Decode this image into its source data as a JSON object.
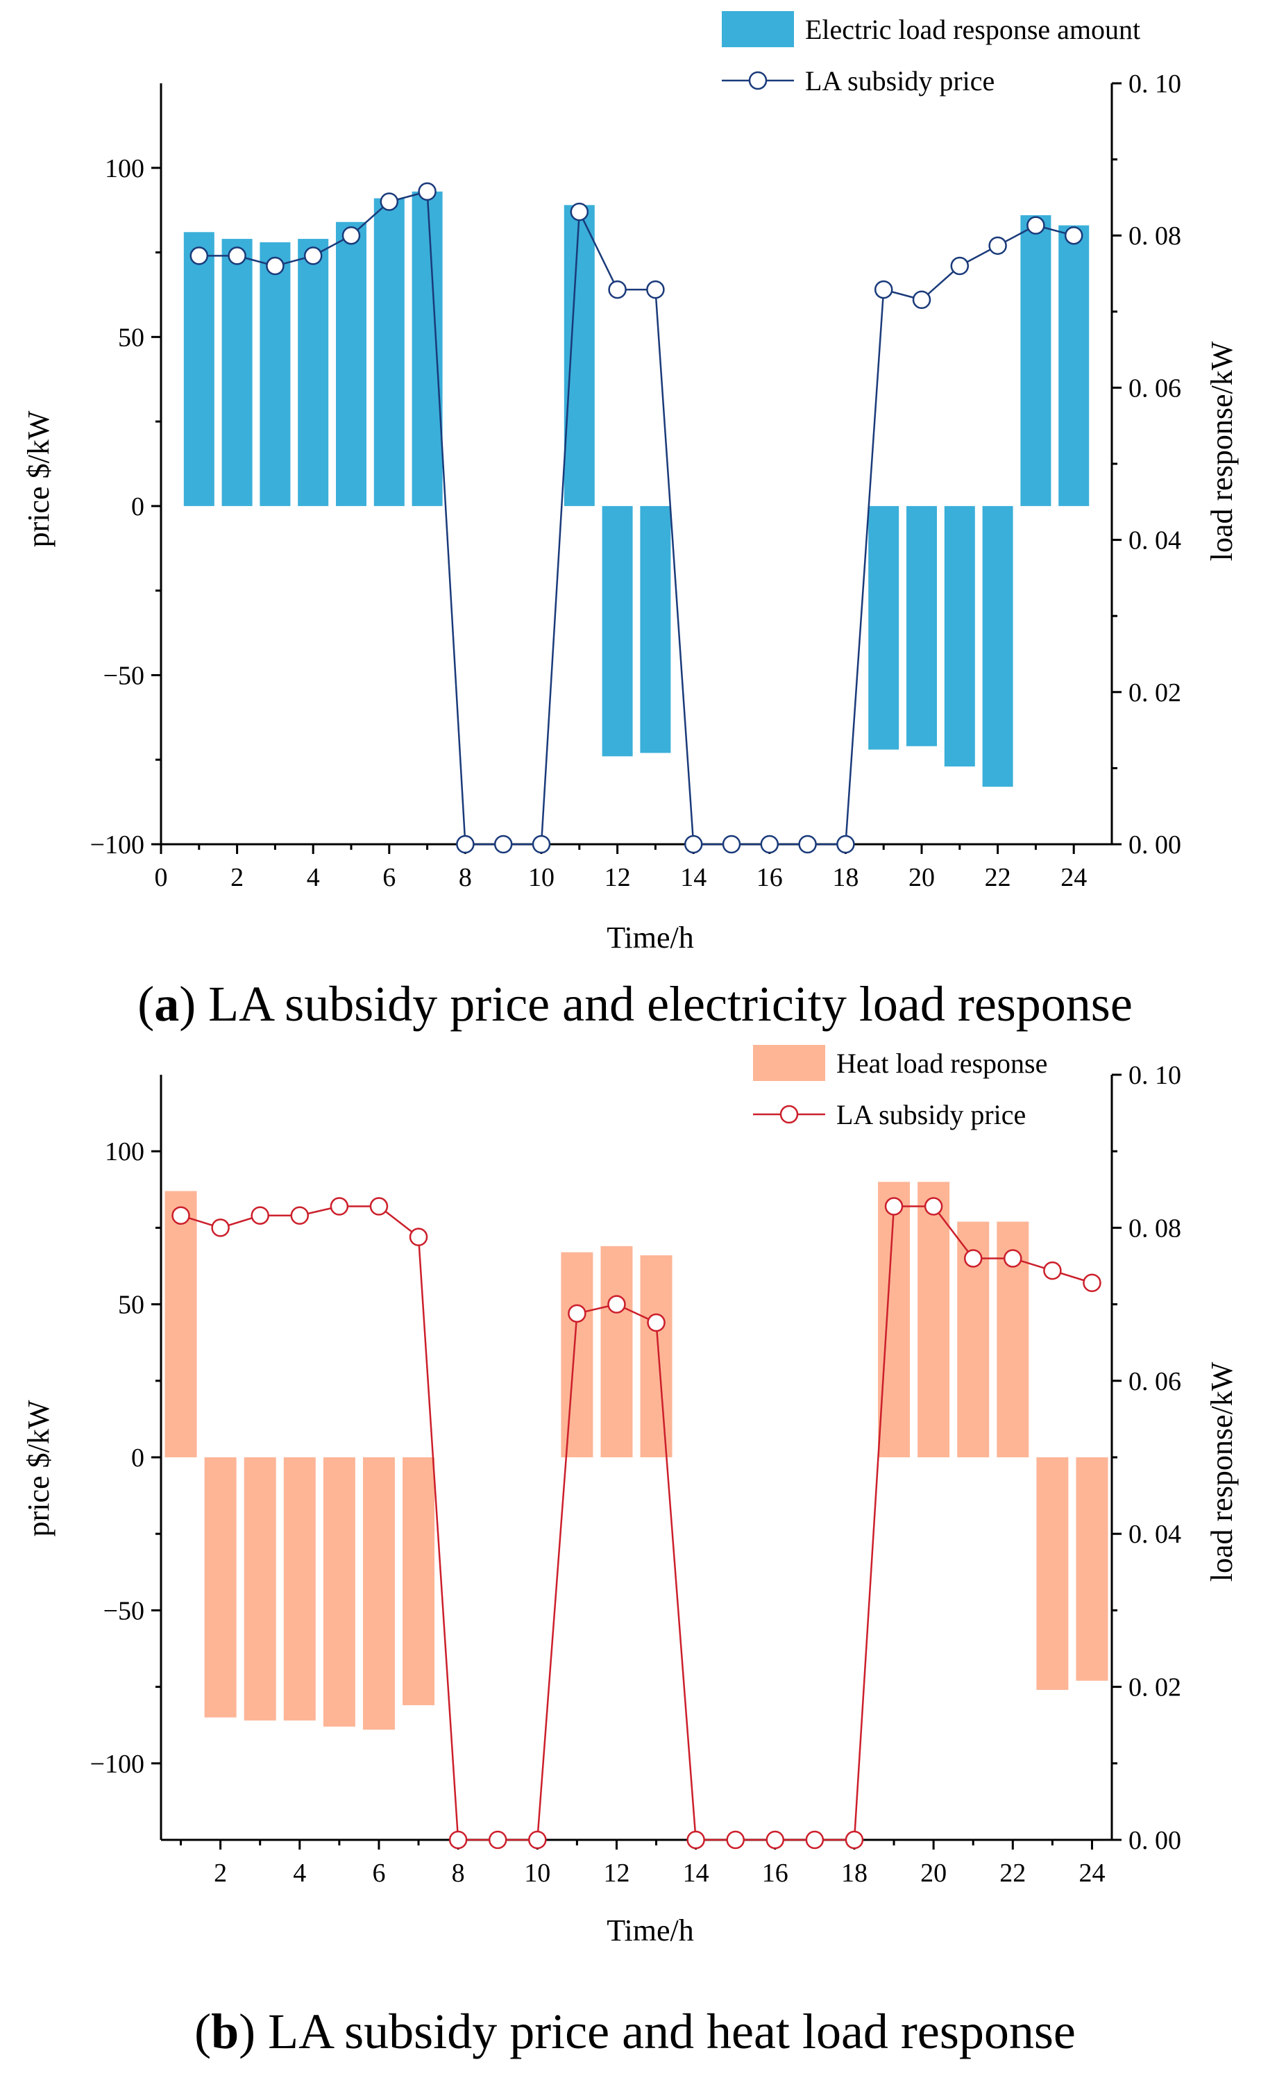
{
  "chart_data": [
    {
      "type": "bar",
      "caption_letter": "a",
      "caption_text": "LA subsidy price and electricity load response",
      "caption_open": "(",
      "caption_close": ")",
      "xlabel": "Time/h",
      "ylabel": "price $/kW",
      "y2label": "load response/kW",
      "xlim": [
        0,
        25
      ],
      "ylim": [
        -100,
        125
      ],
      "y2lim": [
        0,
        0.1
      ],
      "x_ticks": [
        "0",
        "2",
        "4",
        "6",
        "8",
        "10",
        "12",
        "14",
        "16",
        "18",
        "20",
        "22",
        "24"
      ],
      "y_ticks": [
        "100",
        "50",
        "0",
        "−50",
        "−100"
      ],
      "y2_ticks": [
        "0. 10",
        "0. 08",
        "0. 06",
        "0. 04",
        "0. 02",
        "0. 00"
      ],
      "colors": {
        "bar": "#3aafd9",
        "line": "#1a3a7a",
        "marker_face": "#ffffff"
      },
      "series": [
        {
          "name": "Electric load response amount",
          "kind": "bar",
          "x": [
            1,
            2,
            3,
            4,
            5,
            6,
            7,
            8,
            9,
            10,
            11,
            12,
            13,
            14,
            15,
            16,
            17,
            18,
            19,
            20,
            21,
            22,
            23,
            24
          ],
          "values": [
            81,
            79,
            78,
            79,
            84,
            91,
            93,
            0,
            0,
            0,
            89,
            -74,
            -73,
            0,
            0,
            0,
            0,
            0,
            -72,
            -71,
            -77,
            -83,
            86,
            83
          ]
        },
        {
          "name": "LA subsidy price",
          "kind": "line",
          "x": [
            1,
            2,
            3,
            4,
            5,
            6,
            7,
            8,
            9,
            10,
            11,
            12,
            13,
            14,
            15,
            16,
            17,
            18,
            19,
            20,
            21,
            22,
            23,
            24
          ],
          "values": [
            74,
            74,
            71,
            74,
            80,
            90,
            93,
            -100,
            -100,
            -100,
            87,
            64,
            64,
            -100,
            -100,
            -100,
            -100,
            -100,
            64,
            61,
            71,
            77,
            83,
            80
          ]
        }
      ]
    },
    {
      "type": "bar",
      "caption_letter": "b",
      "caption_text": "LA subsidy price and heat load response",
      "caption_open": "(",
      "caption_close": ")",
      "xlabel": "Time/h",
      "ylabel": "price $/kW",
      "y2label": "load response/kW",
      "xlim": [
        0.5,
        24.5
      ],
      "ylim": [
        -125,
        125
      ],
      "y2lim": [
        0,
        0.1
      ],
      "x_ticks": [
        "2",
        "4",
        "6",
        "8",
        "10",
        "12",
        "14",
        "16",
        "18",
        "20",
        "22",
        "24"
      ],
      "y_ticks": [
        "100",
        "50",
        "0",
        "−50",
        "−100"
      ],
      "y2_ticks": [
        "0. 10",
        "0. 08",
        "0. 06",
        "0. 04",
        "0. 02",
        "0. 00"
      ],
      "colors": {
        "bar": "#fdb596",
        "line": "#cc1f2b",
        "marker_face": "#ffffff"
      },
      "series": [
        {
          "name": "Heat load response",
          "kind": "bar",
          "x": [
            1,
            2,
            3,
            4,
            5,
            6,
            7,
            8,
            9,
            10,
            11,
            12,
            13,
            14,
            15,
            16,
            17,
            18,
            19,
            20,
            21,
            22,
            23,
            24
          ],
          "values": [
            87,
            -85,
            -86,
            -86,
            -88,
            -89,
            -81,
            0,
            0,
            0,
            67,
            69,
            66,
            0,
            0,
            0,
            0,
            0,
            90,
            90,
            77,
            77,
            -76,
            -73
          ]
        },
        {
          "name": "LA subsidy price",
          "kind": "line",
          "x": [
            1,
            2,
            3,
            4,
            5,
            6,
            7,
            8,
            9,
            10,
            11,
            12,
            13,
            14,
            15,
            16,
            17,
            18,
            19,
            20,
            21,
            22,
            23,
            24
          ],
          "values": [
            79,
            75,
            79,
            79,
            82,
            82,
            72,
            -125,
            -125,
            -125,
            47,
            50,
            44,
            -125,
            -125,
            -125,
            -125,
            -125,
            82,
            82,
            65,
            65,
            61,
            57
          ]
        }
      ]
    }
  ]
}
